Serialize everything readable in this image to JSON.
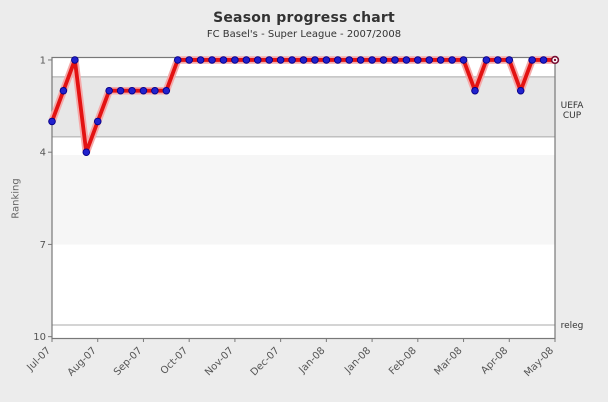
{
  "chart_data": {
    "type": "line",
    "title": "Season progress chart",
    "subtitle": "FC Basel's - Super League - 2007/2008",
    "ylabel": "Ranking",
    "y_axis_inverted": true,
    "ylim": [
      0.92,
      10.06
    ],
    "yticks": [
      1,
      4,
      7,
      10
    ],
    "x_tick_labels": [
      "Jul-07",
      "Aug-07",
      "Sep-07",
      "Oct-07",
      "Nov-07",
      "Dec-07",
      "Jan-08",
      "Jan-08",
      "Feb-08",
      "Mar-08",
      "Apr-08",
      "May-08"
    ],
    "x_tick_every": 4,
    "rankings": [
      3,
      2,
      1,
      4,
      3,
      2,
      2,
      2,
      2,
      2,
      2,
      1,
      1,
      1,
      1,
      1,
      1,
      1,
      1,
      1,
      1,
      1,
      1,
      1,
      1,
      1,
      1,
      1,
      1,
      1,
      1,
      1,
      1,
      1,
      1,
      1,
      1,
      2,
      1,
      1,
      1,
      2,
      1,
      1,
      1
    ],
    "bands": [
      {
        "from": 0.92,
        "to": 1.55,
        "color": "#ffffff"
      },
      {
        "from": 1.55,
        "to": 3.5,
        "color": "#e7e7e7"
      },
      {
        "from": 3.5,
        "to": 4.1,
        "color": "#ffffff"
      },
      {
        "from": 4.1,
        "to": 7.0,
        "color": "#f6f6f6"
      },
      {
        "from": 7.0,
        "to": 10.06,
        "color": "#ffffff"
      }
    ],
    "band_lines": [
      1.55,
      3.5,
      9.62
    ],
    "right_labels": [
      {
        "lines": [
          "UEFA",
          "CUP"
        ],
        "rank": 2.62
      },
      {
        "lines": [
          "releg"
        ],
        "rank": 9.62
      }
    ],
    "colors": {
      "background": "#ececec",
      "plot_border": "#787878",
      "band_line": "#a8a8a8",
      "line": "#e31212",
      "line_halo": "#f5aaaa",
      "point_fill": "#2121cd",
      "point_edge": "#00008b",
      "current_marker": "#7a1034"
    }
  }
}
